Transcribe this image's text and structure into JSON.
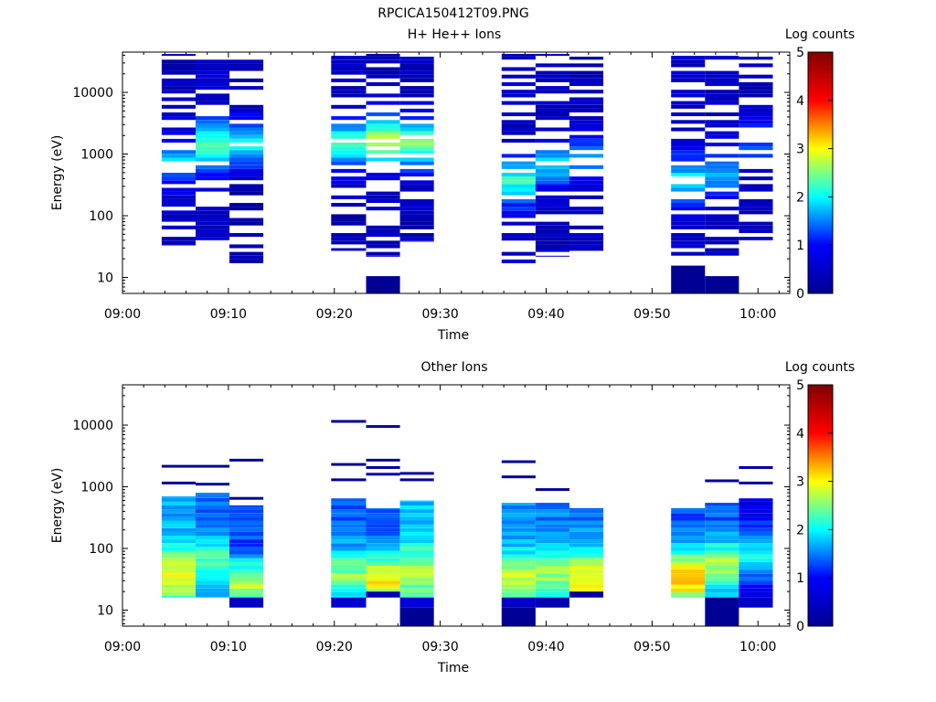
{
  "figure_title": "RPCICA150412T09.PNG",
  "chart_data": [
    {
      "type": "heatmap",
      "title": "H+ He++ Ions",
      "xlabel": "Time",
      "ylabel": "Energy (eV)",
      "x_ticks": [
        "09:00",
        "09:10",
        "09:20",
        "09:30",
        "09:40",
        "09:50",
        "10:00"
      ],
      "x_range_minutes": [
        0,
        63
      ],
      "y_scale": "log",
      "y_ticks": [
        "10",
        "100",
        "1000",
        "10000"
      ],
      "ylim": [
        5.5,
        45000
      ],
      "colorbar_label": "Log counts",
      "colorbar_ticks": [
        "0",
        "1",
        "2",
        "3",
        "4",
        "5"
      ],
      "colorbar_range": [
        0,
        5
      ],
      "colormap": [
        "#00008f",
        "#0000ff",
        "#00ffff",
        "#ffff00",
        "#ff0000",
        "#800000"
      ],
      "columns": [
        {
          "start_min": 3.7,
          "end_min": 6.9,
          "emin": 33,
          "emax": 42000,
          "gap_rate": 0.35,
          "level_low": 0.45,
          "level_peak": 1.7,
          "peak_energy": 800
        },
        {
          "start_min": 6.9,
          "end_min": 10.1,
          "emin": 40,
          "emax": 35000,
          "gap_rate": 0.3,
          "level_low": 0.5,
          "level_peak": 2.3,
          "peak_energy": 1300
        },
        {
          "start_min": 10.1,
          "end_min": 13.3,
          "emin": 17,
          "emax": 42000,
          "gap_rate": 0.35,
          "level_low": 0.3,
          "level_peak": 2.0,
          "peak_energy": 1500
        },
        {
          "start_min": 19.7,
          "end_min": 23.0,
          "emin": 27,
          "emax": 42000,
          "gap_rate": 0.35,
          "level_low": 0.35,
          "level_peak": 2.2,
          "peak_energy": 1400
        },
        {
          "start_min": 23.0,
          "end_min": 26.2,
          "emin": 22,
          "emax": 42000,
          "gap_rate": 0.3,
          "level_low": 0.4,
          "level_peak": 2.8,
          "peak_energy": 1500
        },
        {
          "start_min": 26.2,
          "end_min": 29.4,
          "emin": 38,
          "emax": 38000,
          "gap_rate": 0.35,
          "level_low": 0.4,
          "level_peak": 2.4,
          "peak_energy": 1400
        },
        {
          "start_min": 35.8,
          "end_min": 39.0,
          "emin": 17,
          "emax": 42000,
          "gap_rate": 0.3,
          "level_low": 0.45,
          "level_peak": 2.1,
          "peak_energy": 350
        },
        {
          "start_min": 39.0,
          "end_min": 42.2,
          "emin": 22,
          "emax": 42000,
          "gap_rate": 0.35,
          "level_low": 0.4,
          "level_peak": 1.8,
          "peak_energy": 700
        },
        {
          "start_min": 42.2,
          "end_min": 45.4,
          "emin": 27,
          "emax": 38000,
          "gap_rate": 0.35,
          "level_low": 0.4,
          "level_peak": 1.6,
          "peak_energy": 900
        },
        {
          "start_min": 51.8,
          "end_min": 55.0,
          "emin": 22,
          "emax": 42000,
          "gap_rate": 0.25,
          "level_low": 0.5,
          "level_peak": 1.8,
          "peak_energy": 400
        },
        {
          "start_min": 55.0,
          "end_min": 58.2,
          "emin": 22,
          "emax": 42000,
          "gap_rate": 0.3,
          "level_low": 0.45,
          "level_peak": 1.7,
          "peak_energy": 500
        },
        {
          "start_min": 58.2,
          "end_min": 61.4,
          "emin": 40,
          "emax": 38000,
          "gap_rate": 0.35,
          "level_low": 0.4,
          "level_peak": 1.2,
          "peak_energy": 1500
        }
      ],
      "low_blocks": [
        {
          "start_min": 23.0,
          "end_min": 26.2,
          "emin": 5.5,
          "emax": 10.5,
          "level": 0.05
        },
        {
          "start_min": 51.8,
          "end_min": 55.0,
          "emin": 5.5,
          "emax": 15.5,
          "level": 0.05
        },
        {
          "start_min": 55.0,
          "end_min": 58.2,
          "emin": 5.5,
          "emax": 10.5,
          "level": 0.05
        }
      ]
    },
    {
      "type": "heatmap",
      "title": "Other Ions",
      "xlabel": "Time",
      "ylabel": "Energy (eV)",
      "x_ticks": [
        "09:00",
        "09:10",
        "09:20",
        "09:30",
        "09:40",
        "09:50",
        "10:00"
      ],
      "x_range_minutes": [
        0,
        63
      ],
      "y_scale": "log",
      "y_ticks": [
        "10",
        "100",
        "1000",
        "10000"
      ],
      "ylim": [
        5.5,
        45000
      ],
      "colorbar_label": "Log counts",
      "colorbar_ticks": [
        "0",
        "1",
        "2",
        "3",
        "4",
        "5"
      ],
      "colorbar_range": [
        0,
        5
      ],
      "colormap": [
        "#00008f",
        "#0000ff",
        "#00ffff",
        "#ffff00",
        "#ff0000",
        "#800000"
      ],
      "columns": [
        {
          "start_min": 3.7,
          "end_min": 6.9,
          "emin": 16,
          "emax": 700,
          "level_low": 1.7,
          "level_peak": 2.9,
          "peak_energy": 35
        },
        {
          "start_min": 6.9,
          "end_min": 10.1,
          "emin": 16,
          "emax": 800,
          "level_low": 1.4,
          "level_peak": 2.3,
          "peak_energy": 60
        },
        {
          "start_min": 10.1,
          "end_min": 13.3,
          "emin": 16,
          "emax": 500,
          "level_low": 1.2,
          "level_peak": 2.7,
          "peak_energy": 25
        },
        {
          "start_min": 19.7,
          "end_min": 23.0,
          "emin": 16,
          "emax": 650,
          "level_low": 1.3,
          "level_peak": 2.5,
          "peak_energy": 40
        },
        {
          "start_min": 23.0,
          "end_min": 26.2,
          "emin": 20,
          "emax": 450,
          "level_low": 1.4,
          "level_peak": 3.0,
          "peak_energy": 30
        },
        {
          "start_min": 26.2,
          "end_min": 29.4,
          "emin": 16,
          "emax": 600,
          "level_low": 1.8,
          "level_peak": 2.6,
          "peak_energy": 40
        },
        {
          "start_min": 35.8,
          "end_min": 39.0,
          "emin": 16,
          "emax": 550,
          "level_low": 1.6,
          "level_peak": 2.8,
          "peak_energy": 30
        },
        {
          "start_min": 39.0,
          "end_min": 42.2,
          "emin": 16,
          "emax": 550,
          "level_low": 1.5,
          "level_peak": 2.6,
          "peak_energy": 40
        },
        {
          "start_min": 42.2,
          "end_min": 45.4,
          "emin": 20,
          "emax": 450,
          "level_low": 1.5,
          "level_peak": 3.1,
          "peak_energy": 35
        },
        {
          "start_min": 51.8,
          "end_min": 55.0,
          "emin": 16,
          "emax": 450,
          "level_low": 1.3,
          "level_peak": 3.4,
          "peak_energy": 33
        },
        {
          "start_min": 55.0,
          "end_min": 58.2,
          "emin": 16,
          "emax": 550,
          "level_low": 1.3,
          "level_peak": 2.7,
          "peak_energy": 50
        },
        {
          "start_min": 58.2,
          "end_min": 61.4,
          "emin": 16,
          "emax": 650,
          "level_low": 0.8,
          "level_peak": 2.0,
          "peak_energy": 80
        }
      ],
      "low_blocks": [
        {
          "start_min": 10.1,
          "end_min": 13.3,
          "emin": 11,
          "emax": 16,
          "level": 0.5
        },
        {
          "start_min": 19.7,
          "end_min": 23.0,
          "emin": 11,
          "emax": 16,
          "level": 0.6
        },
        {
          "start_min": 23.0,
          "end_min": 26.2,
          "emin": 16,
          "emax": 20,
          "level": 0.3
        },
        {
          "start_min": 26.2,
          "end_min": 29.4,
          "emin": 11,
          "emax": 16,
          "level": 0.7
        },
        {
          "start_min": 26.2,
          "end_min": 29.4,
          "emin": 5.5,
          "emax": 11,
          "level": 0.05
        },
        {
          "start_min": 35.8,
          "end_min": 39.0,
          "emin": 11,
          "emax": 16,
          "level": 0.5
        },
        {
          "start_min": 35.8,
          "end_min": 39.0,
          "emin": 5.5,
          "emax": 11,
          "level": 0.05
        },
        {
          "start_min": 39.0,
          "end_min": 42.2,
          "emin": 11,
          "emax": 16,
          "level": 0.3
        },
        {
          "start_min": 42.2,
          "end_min": 45.4,
          "emin": 16,
          "emax": 20,
          "level": 0.2
        },
        {
          "start_min": 55.0,
          "end_min": 58.2,
          "emin": 5.5,
          "emax": 16,
          "level": 0.05
        },
        {
          "start_min": 58.2,
          "end_min": 61.4,
          "emin": 11,
          "emax": 16,
          "level": 0.5
        }
      ],
      "sparse_lines": [
        {
          "start_min": 3.7,
          "end_min": 6.9,
          "energy": 2150,
          "level": 0.1
        },
        {
          "start_min": 3.7,
          "end_min": 6.9,
          "energy": 1150,
          "level": 0.1
        },
        {
          "start_min": 6.9,
          "end_min": 10.1,
          "energy": 2150,
          "level": 0.1
        },
        {
          "start_min": 6.9,
          "end_min": 10.1,
          "energy": 1100,
          "level": 0.1
        },
        {
          "start_min": 10.1,
          "end_min": 13.3,
          "energy": 2700,
          "level": 0.1
        },
        {
          "start_min": 10.1,
          "end_min": 13.3,
          "energy": 650,
          "level": 0.15
        },
        {
          "start_min": 19.7,
          "end_min": 23.0,
          "energy": 11500,
          "level": 0.1
        },
        {
          "start_min": 19.7,
          "end_min": 23.0,
          "energy": 2300,
          "level": 0.1
        },
        {
          "start_min": 19.7,
          "end_min": 23.0,
          "energy": 1300,
          "level": 0.1
        },
        {
          "start_min": 23.0,
          "end_min": 26.2,
          "energy": 9500,
          "level": 0.1
        },
        {
          "start_min": 23.0,
          "end_min": 26.2,
          "energy": 2700,
          "level": 0.1
        },
        {
          "start_min": 23.0,
          "end_min": 26.2,
          "energy": 2050,
          "level": 0.2
        },
        {
          "start_min": 23.0,
          "end_min": 26.2,
          "energy": 1600,
          "level": 0.2
        },
        {
          "start_min": 26.2,
          "end_min": 29.4,
          "energy": 1650,
          "level": 0.1
        },
        {
          "start_min": 26.2,
          "end_min": 29.4,
          "energy": 1300,
          "level": 0.1
        },
        {
          "start_min": 35.8,
          "end_min": 39.0,
          "energy": 2550,
          "level": 0.1
        },
        {
          "start_min": 35.8,
          "end_min": 39.0,
          "energy": 1450,
          "level": 0.1
        },
        {
          "start_min": 39.0,
          "end_min": 42.2,
          "energy": 900,
          "level": 0.1
        },
        {
          "start_min": 55.0,
          "end_min": 58.2,
          "energy": 1250,
          "level": 0.1
        },
        {
          "start_min": 58.2,
          "end_min": 61.4,
          "energy": 2050,
          "level": 0.2
        },
        {
          "start_min": 58.2,
          "end_min": 61.4,
          "energy": 1150,
          "level": 0.1
        }
      ]
    }
  ]
}
